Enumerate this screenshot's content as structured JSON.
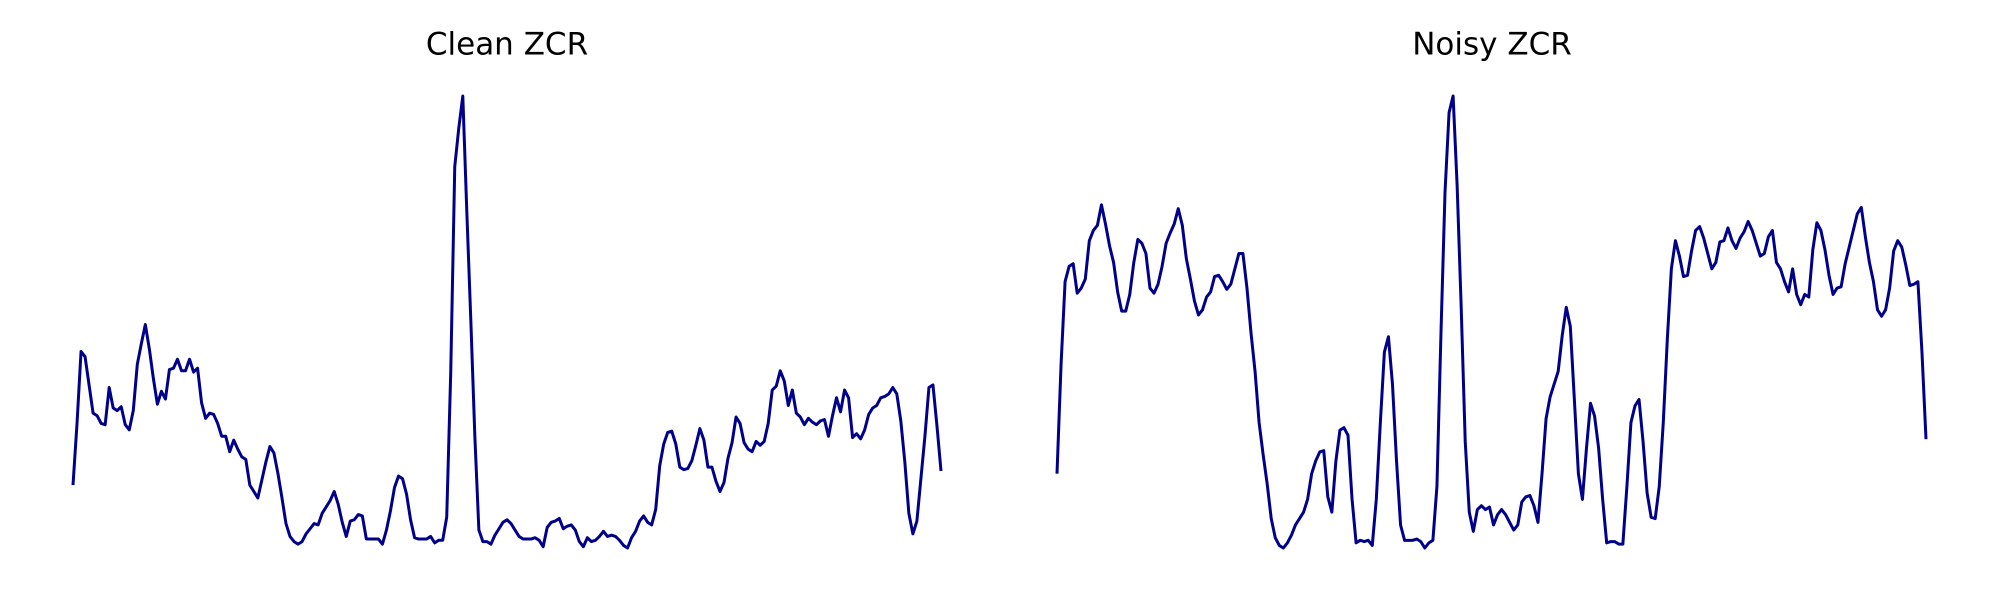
{
  "chart_data": [
    {
      "type": "line",
      "title": "Clean ZCR",
      "color": "#00008b",
      "values": [
        0.052,
        0.1,
        0.156,
        0.152,
        0.13,
        0.108,
        0.106,
        0.1,
        0.099,
        0.128,
        0.112,
        0.11,
        0.113,
        0.099,
        0.095,
        0.11,
        0.146,
        0.162,
        0.177,
        0.158,
        0.135,
        0.115,
        0.125,
        0.119,
        0.142,
        0.143,
        0.15,
        0.141,
        0.141,
        0.15,
        0.14,
        0.143,
        0.116,
        0.104,
        0.108,
        0.107,
        0.1,
        0.09,
        0.09,
        0.078,
        0.087,
        0.08,
        0.074,
        0.072,
        0.052,
        0.047,
        0.042,
        0.056,
        0.07,
        0.082,
        0.077,
        0.061,
        0.042,
        0.022,
        0.012,
        0.008,
        0.006,
        0.008,
        0.014,
        0.018,
        0.022,
        0.021,
        0.03,
        0.035,
        0.04,
        0.047,
        0.037,
        0.023,
        0.012,
        0.024,
        0.025,
        0.029,
        0.028,
        0.01,
        0.01,
        0.01,
        0.01,
        0.006,
        0.017,
        0.032,
        0.05,
        0.059,
        0.057,
        0.045,
        0.025,
        0.011,
        0.01,
        0.01,
        0.01,
        0.012,
        0.007,
        0.009,
        0.009,
        0.027,
        0.14,
        0.3,
        0.33,
        0.355,
        0.265,
        0.18,
        0.09,
        0.017,
        0.008,
        0.008,
        0.006,
        0.013,
        0.018,
        0.023,
        0.025,
        0.022,
        0.017,
        0.012,
        0.01,
        0.01,
        0.01,
        0.011,
        0.009,
        0.004,
        0.019,
        0.023,
        0.024,
        0.026,
        0.018,
        0.02,
        0.021,
        0.017,
        0.008,
        0.004,
        0.011,
        0.008,
        0.009,
        0.012,
        0.016,
        0.012,
        0.013,
        0.012,
        0.009,
        0.005,
        0.003,
        0.011,
        0.016,
        0.024,
        0.028,
        0.023,
        0.021,
        0.033,
        0.067,
        0.084,
        0.093,
        0.094,
        0.084,
        0.066,
        0.064,
        0.065,
        0.071,
        0.083,
        0.096,
        0.087,
        0.066,
        0.066,
        0.055,
        0.047,
        0.054,
        0.073,
        0.085,
        0.105,
        0.1,
        0.085,
        0.08,
        0.078,
        0.086,
        0.083,
        0.086,
        0.1,
        0.126,
        0.129,
        0.141,
        0.133,
        0.114,
        0.126,
        0.108,
        0.105,
        0.099,
        0.104,
        0.101,
        0.099,
        0.102,
        0.103,
        0.09,
        0.106,
        0.12,
        0.109,
        0.126,
        0.12,
        0.089,
        0.092,
        0.088,
        0.095,
        0.107,
        0.112,
        0.114,
        0.12,
        0.121,
        0.123,
        0.128,
        0.123,
        0.102,
        0.07,
        0.03,
        0.014,
        0.024,
        0.057,
        0.09,
        0.128,
        0.13,
        0.098,
        0.063
      ]
    },
    {
      "type": "line",
      "title": "Noisy ZCR",
      "color": "#00008b",
      "values": [
        0.06,
        0.145,
        0.21,
        0.222,
        0.224,
        0.201,
        0.205,
        0.212,
        0.242,
        0.25,
        0.254,
        0.27,
        0.255,
        0.238,
        0.225,
        0.202,
        0.187,
        0.187,
        0.2,
        0.225,
        0.243,
        0.24,
        0.232,
        0.205,
        0.201,
        0.208,
        0.222,
        0.24,
        0.248,
        0.255,
        0.267,
        0.254,
        0.228,
        0.212,
        0.195,
        0.184,
        0.188,
        0.198,
        0.202,
        0.214,
        0.215,
        0.21,
        0.204,
        0.208,
        0.22,
        0.232,
        0.232,
        0.205,
        0.17,
        0.14,
        0.1,
        0.075,
        0.052,
        0.025,
        0.01,
        0.004,
        0.002,
        0.006,
        0.012,
        0.02,
        0.025,
        0.03,
        0.04,
        0.06,
        0.07,
        0.077,
        0.078,
        0.042,
        0.03,
        0.07,
        0.094,
        0.096,
        0.09,
        0.04,
        0.006,
        0.008,
        0.007,
        0.008,
        0.004,
        0.04,
        0.1,
        0.155,
        0.167,
        0.13,
        0.07,
        0.02,
        0.008,
        0.008,
        0.008,
        0.009,
        0.007,
        0.002,
        0.006,
        0.008,
        0.05,
        0.17,
        0.28,
        0.342,
        0.355,
        0.285,
        0.19,
        0.085,
        0.03,
        0.015,
        0.032,
        0.035,
        0.032,
        0.034,
        0.02,
        0.028,
        0.032,
        0.028,
        0.022,
        0.016,
        0.02,
        0.038,
        0.042,
        0.043,
        0.035,
        0.022,
        0.06,
        0.103,
        0.12,
        0.13,
        0.14,
        0.168,
        0.19,
        0.175,
        0.118,
        0.06,
        0.04,
        0.08,
        0.115,
        0.105,
        0.08,
        0.04,
        0.006,
        0.007,
        0.007,
        0.005,
        0.005,
        0.05,
        0.1,
        0.113,
        0.118,
        0.085,
        0.045,
        0.026,
        0.025,
        0.05,
        0.1,
        0.165,
        0.22,
        0.242,
        0.23,
        0.214,
        0.215,
        0.234,
        0.25,
        0.253,
        0.244,
        0.232,
        0.22,
        0.225,
        0.241,
        0.242,
        0.252,
        0.242,
        0.236,
        0.244,
        0.249,
        0.257,
        0.25,
        0.24,
        0.23,
        0.232,
        0.245,
        0.25,
        0.225,
        0.22,
        0.21,
        0.202,
        0.22,
        0.2,
        0.192,
        0.2,
        0.198,
        0.235,
        0.256,
        0.25,
        0.235,
        0.215,
        0.2,
        0.205,
        0.206,
        0.224,
        0.237,
        0.25,
        0.263,
        0.268,
        0.245,
        0.225,
        0.21,
        0.188,
        0.183,
        0.188,
        0.205,
        0.234,
        0.242,
        0.237,
        0.223,
        0.207,
        0.208,
        0.21,
        0.155,
        0.087
      ]
    }
  ]
}
